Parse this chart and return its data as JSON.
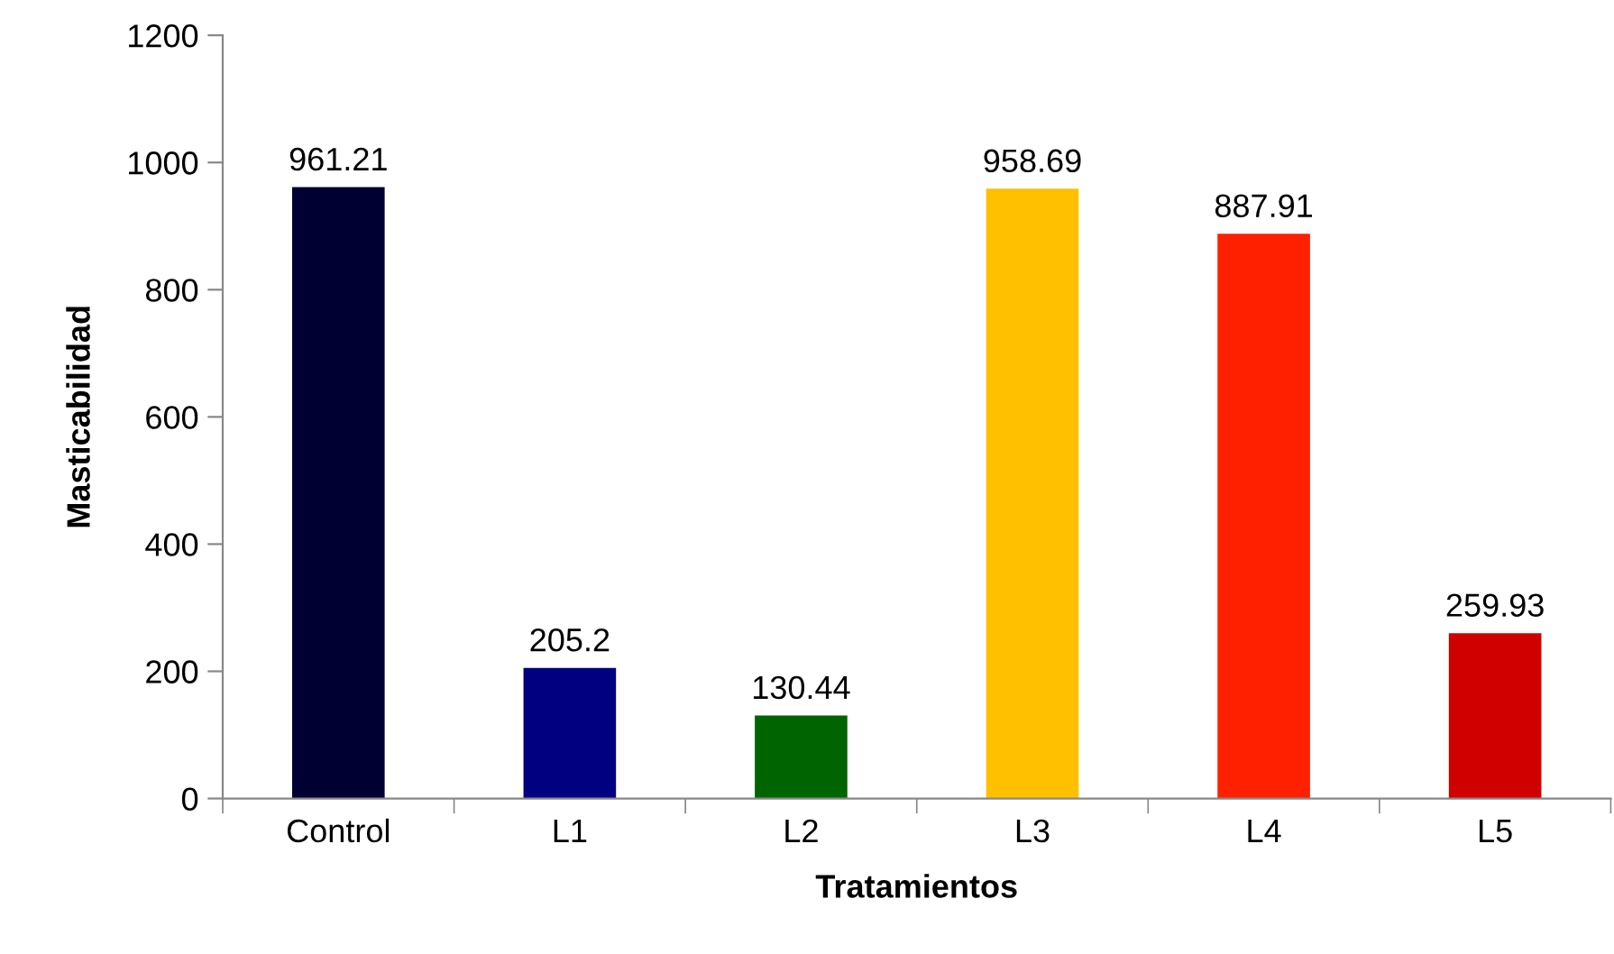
{
  "chart_data": {
    "type": "bar",
    "xlabel": "Tratamientos",
    "ylabel": "Masticabilidad",
    "categories": [
      "Control",
      "L1",
      "L2",
      "L3",
      "L4",
      "L5"
    ],
    "values": [
      961.21,
      205.2,
      130.44,
      958.69,
      887.91,
      259.93
    ],
    "colors": [
      "#000033",
      "#000080",
      "#006400",
      "#ffc000",
      "#ff2000",
      "#d00000"
    ],
    "ylim": [
      0,
      1200
    ],
    "yticks": [
      0,
      200,
      400,
      600,
      800,
      1000,
      1200
    ],
    "data_labels": true,
    "grid": false,
    "legend": false
  }
}
